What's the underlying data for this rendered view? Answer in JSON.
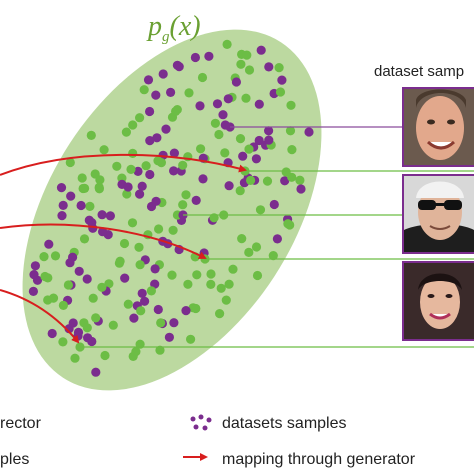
{
  "distribution_label": {
    "p": "p",
    "sub": "g",
    "arg": "(x)"
  },
  "dataset_title": "dataset samp",
  "legend": {
    "left_line1": "rector",
    "left_line2": "ples",
    "dataset_samples": "datasets  samples",
    "mapping": "mapping through generator"
  },
  "colors": {
    "ellipse_fill": "#bcd9a0",
    "generated_dot": "#6cbd45",
    "dataset_dot": "#7b2d8e",
    "arrow": "#d81e1e",
    "link_line": "#6cbd45",
    "link_line_purple": "#8a4c9c"
  },
  "faces": [
    {
      "name": "face-man-smiling-icon"
    },
    {
      "name": "face-sunglasses-icon"
    },
    {
      "name": "face-woman-icon"
    }
  ]
}
